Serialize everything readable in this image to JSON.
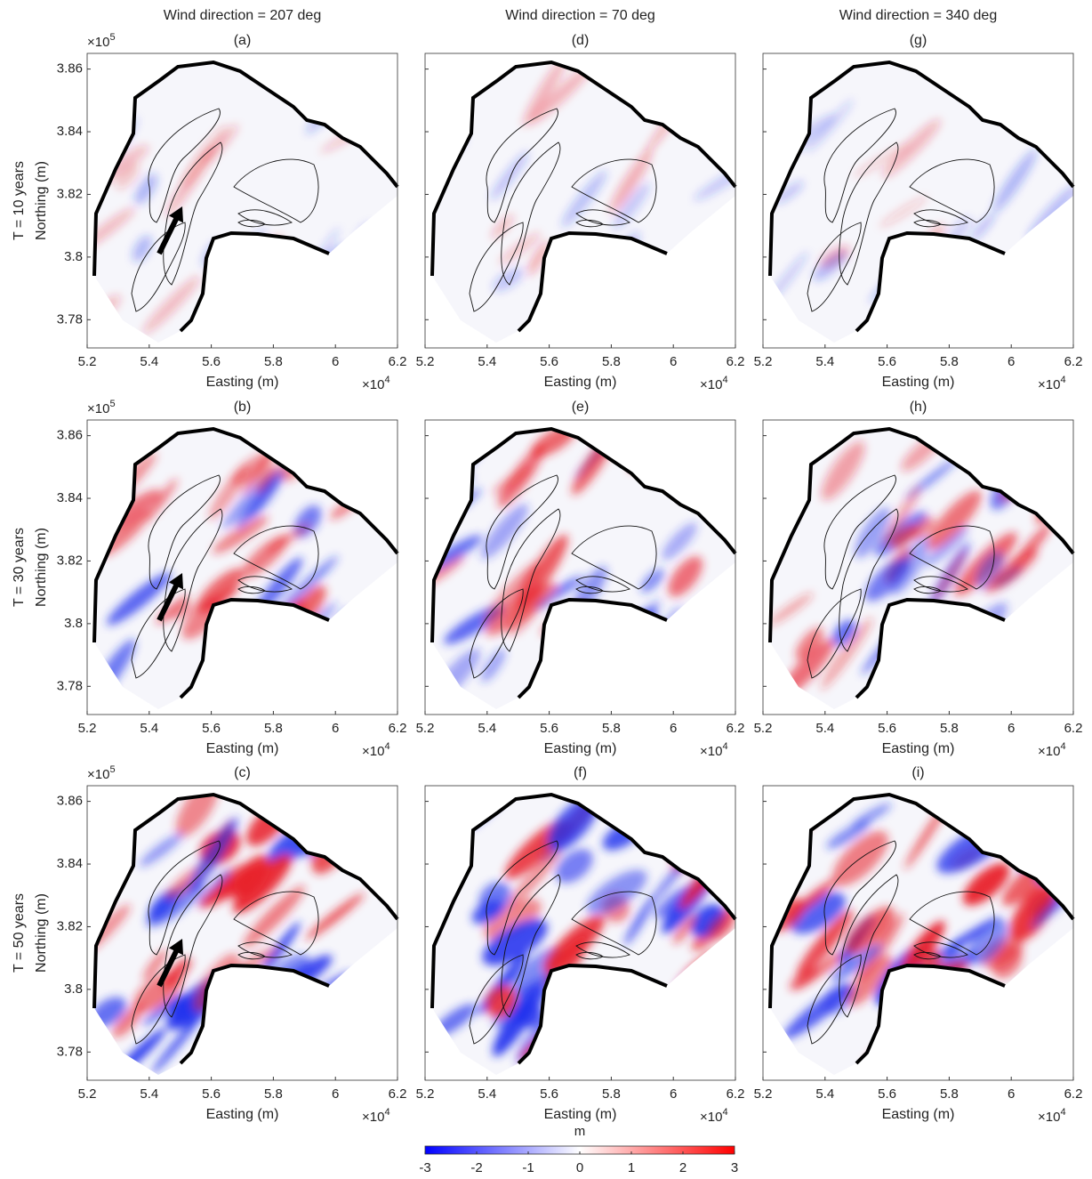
{
  "figure": {
    "column_titles": [
      "Wind direction = 207 deg",
      "Wind direction = 70 deg",
      "Wind direction = 340 deg"
    ],
    "row_titles": [
      "T = 10 years",
      "T = 30 years",
      "T = 50 years"
    ],
    "panel_labels": [
      [
        "(a)",
        "(d)",
        "(g)"
      ],
      [
        "(b)",
        "(e)",
        "(h)"
      ],
      [
        "(c)",
        "(f)",
        "(i)"
      ]
    ],
    "x_label": "Easting (m)",
    "y_label": "Northing (m)",
    "x_multiplier": {
      "base": "×10",
      "exponent": "4"
    },
    "y_multiplier": {
      "base": "×10",
      "exponent": "5"
    },
    "xlim": [
      52000,
      62000
    ],
    "xticks": [
      {
        "value": 52000,
        "label": "5.2"
      },
      {
        "value": 54000,
        "label": "5.4"
      },
      {
        "value": 56000,
        "label": "5.6"
      },
      {
        "value": 58000,
        "label": "5.8"
      },
      {
        "value": 60000,
        "label": "6"
      },
      {
        "value": 62000,
        "label": "6.2"
      }
    ],
    "ylim": [
      377100,
      386500
    ],
    "yticks": [
      {
        "value": 378000,
        "label": "3.78"
      },
      {
        "value": 380000,
        "label": "3.8"
      },
      {
        "value": 382000,
        "label": "3.82"
      },
      {
        "value": 384000,
        "label": "3.84"
      },
      {
        "value": 386000,
        "label": "3.86"
      }
    ],
    "colorbar": {
      "label": "m",
      "lim": [
        -3,
        3
      ],
      "ticks": [
        -3,
        -2,
        -1,
        0,
        1,
        2,
        3
      ],
      "colors": [
        "#0000ff",
        "#ffffff",
        "#ff0000"
      ]
    }
  }
}
